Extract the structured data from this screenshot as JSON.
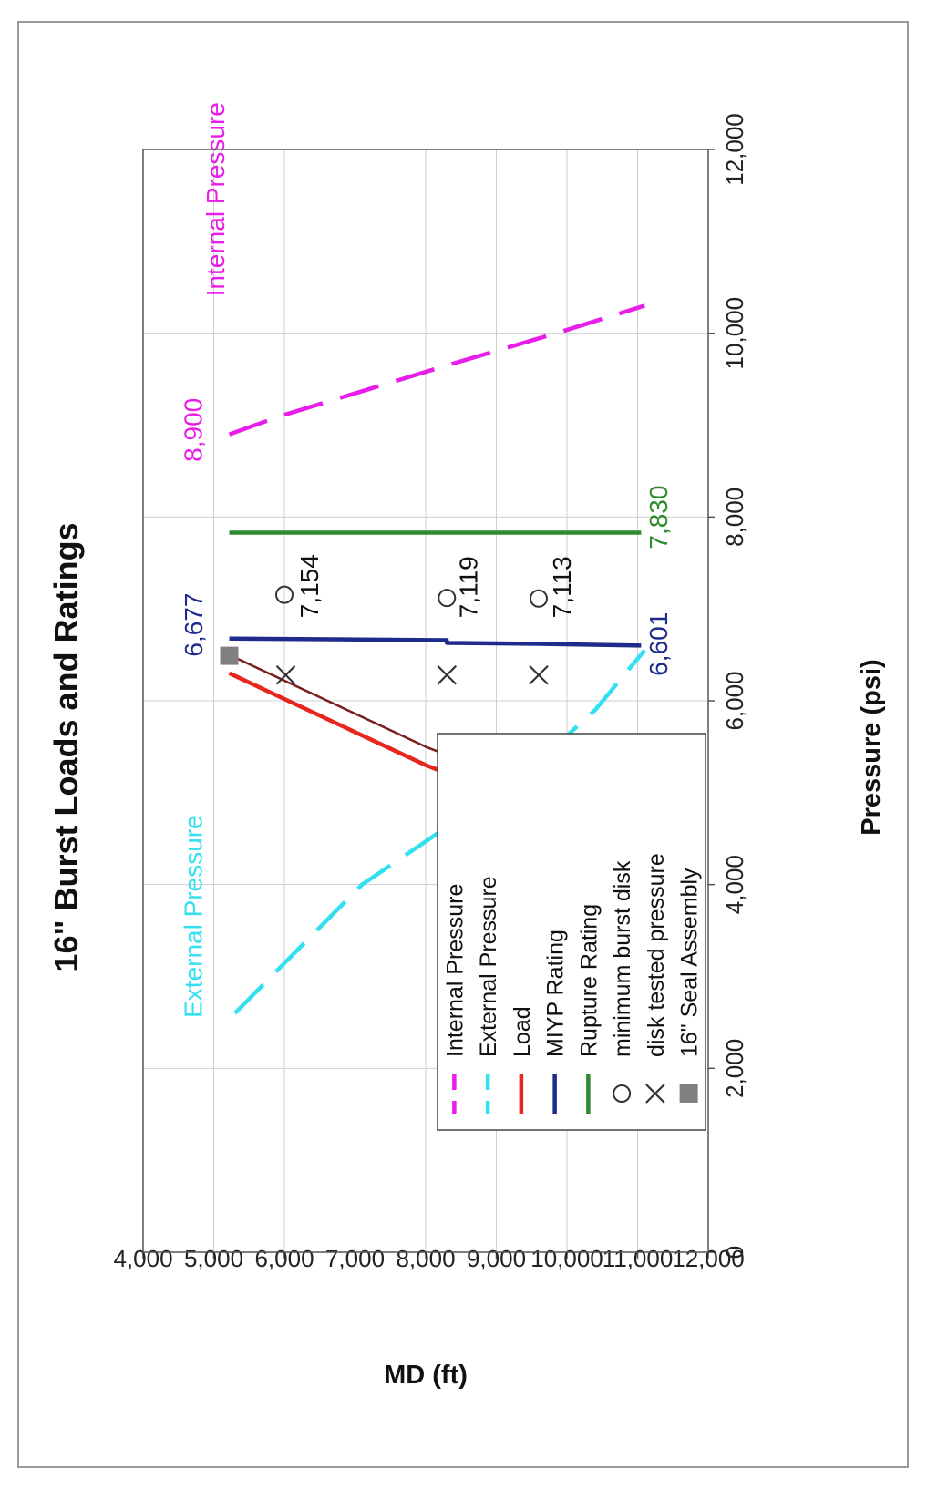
{
  "chart_data": {
    "type": "line",
    "title": "16\" Burst Loads and Ratings",
    "xlabel": "Pressure (psi)",
    "ylabel": "MD (ft)",
    "xlim": [
      0,
      12000
    ],
    "ylim": [
      4000,
      12000
    ],
    "y_inverted": true,
    "grid": true,
    "x_ticks": [
      {
        "value": 0,
        "label": "0"
      },
      {
        "value": 2000,
        "label": "2,000"
      },
      {
        "value": 4000,
        "label": "4,000"
      },
      {
        "value": 6000,
        "label": "6,000"
      },
      {
        "value": 8000,
        "label": "8,000"
      },
      {
        "value": 10000,
        "label": "10,000"
      },
      {
        "value": 12000,
        "label": "12,000"
      }
    ],
    "y_ticks": [
      {
        "value": 4000,
        "label": "4,000"
      },
      {
        "value": 5000,
        "label": "5,000"
      },
      {
        "value": 6000,
        "label": "6,000"
      },
      {
        "value": 7000,
        "label": "7,000"
      },
      {
        "value": 8000,
        "label": "8,000"
      },
      {
        "value": 9000,
        "label": "9,000"
      },
      {
        "value": 10000,
        "label": "10,000"
      },
      {
        "value": 11000,
        "label": "11,000"
      },
      {
        "value": 12000,
        "label": "12,000"
      }
    ],
    "series": [
      {
        "name": "Internal Pressure",
        "color": "#e81ee8",
        "dash": true,
        "points": [
          [
            8900,
            5220
          ],
          [
            9100,
            5950
          ],
          [
            9650,
            8300
          ],
          [
            10000,
            9850
          ],
          [
            10300,
            11100
          ]
        ]
      },
      {
        "name": "External Pressure",
        "color": "#33e0f0",
        "dash": true,
        "points": [
          [
            2600,
            5300
          ],
          [
            4000,
            7100
          ],
          [
            5200,
            9400
          ],
          [
            5900,
            10400
          ],
          [
            6550,
            11100
          ]
        ]
      },
      {
        "name": "Load",
        "color": "#e8261e",
        "dash": false,
        "points": [
          [
            6300,
            5220
          ],
          [
            5300,
            8000
          ],
          [
            5000,
            9000
          ],
          [
            4700,
            9550
          ],
          [
            3800,
            11050
          ]
        ]
      },
      {
        "name": "",
        "color": "#7a1e1e",
        "dash": false,
        "thin": true,
        "points": [
          [
            6500,
            5220
          ],
          [
            5500,
            8000
          ],
          [
            5200,
            9000
          ],
          [
            4900,
            9550
          ],
          [
            3900,
            11150
          ]
        ]
      },
      {
        "name": "MIYP Rating",
        "color": "#1e2a8c",
        "dash": false,
        "points": [
          [
            6677,
            5220
          ],
          [
            6660,
            8300
          ],
          [
            6630,
            8300
          ],
          [
            6620,
            9600
          ],
          [
            6601,
            11050
          ]
        ]
      },
      {
        "name": "Rupture Rating",
        "color": "#2e8a2e",
        "dash": false,
        "points": [
          [
            7830,
            5220
          ],
          [
            7830,
            11050
          ]
        ]
      }
    ],
    "markers": [
      {
        "series": "minimum burst disk",
        "shape": "circle",
        "points": [
          [
            7154,
            6000
          ],
          [
            7119,
            8300
          ],
          [
            7113,
            9600
          ]
        ]
      },
      {
        "series": "disk tested pressure",
        "shape": "x",
        "points": [
          [
            6280,
            6020
          ],
          [
            6280,
            8300
          ],
          [
            6280,
            9600
          ]
        ]
      },
      {
        "series": "16\" Seal Assembly",
        "shape": "square",
        "points": [
          [
            6490,
            5220
          ]
        ]
      }
    ],
    "annotations": [
      {
        "text": "Internal Pressure",
        "color": "#e81ee8",
        "x": 10400,
        "y": 5150
      },
      {
        "text": "8,900",
        "color": "#e81ee8",
        "x": 8600,
        "y": 4830
      },
      {
        "text": "External Pressure",
        "color": "#33e0f0",
        "x": 2550,
        "y": 4830
      },
      {
        "text": "6,677",
        "color": "#1e2a8c",
        "x": 6480,
        "y": 4840
      },
      {
        "text": "6,601",
        "color": "#1e2a8c",
        "x": 6270,
        "y": 11420
      },
      {
        "text": "7,830",
        "color": "#2e8a2e",
        "x": 7650,
        "y": 11420
      },
      {
        "text": "7,154",
        "color": "#111111",
        "x": 6900,
        "y": 6480
      },
      {
        "text": "7,119",
        "color": "#111111",
        "x": 6900,
        "y": 8730
      },
      {
        "text": "7,113",
        "color": "#111111",
        "x": 6900,
        "y": 10050
      }
    ],
    "legend": {
      "placement": "lower-left",
      "entries": [
        {
          "label": "Internal Pressure",
          "kind": "dash",
          "color": "#e81ee8"
        },
        {
          "label": "External Pressure",
          "kind": "dash",
          "color": "#33e0f0"
        },
        {
          "label": "Load",
          "kind": "line",
          "color": "#e8261e"
        },
        {
          "label": "MIYP Rating",
          "kind": "line",
          "color": "#1e2a8c"
        },
        {
          "label": "Rupture Rating",
          "kind": "line",
          "color": "#2e8a2e"
        },
        {
          "label": "minimum burst disk",
          "kind": "circle",
          "color": "#333333"
        },
        {
          "label": "disk tested pressure",
          "kind": "x",
          "color": "#333333"
        },
        {
          "label": "16\" Seal Assembly",
          "kind": "square",
          "color": "#808080"
        }
      ]
    }
  }
}
